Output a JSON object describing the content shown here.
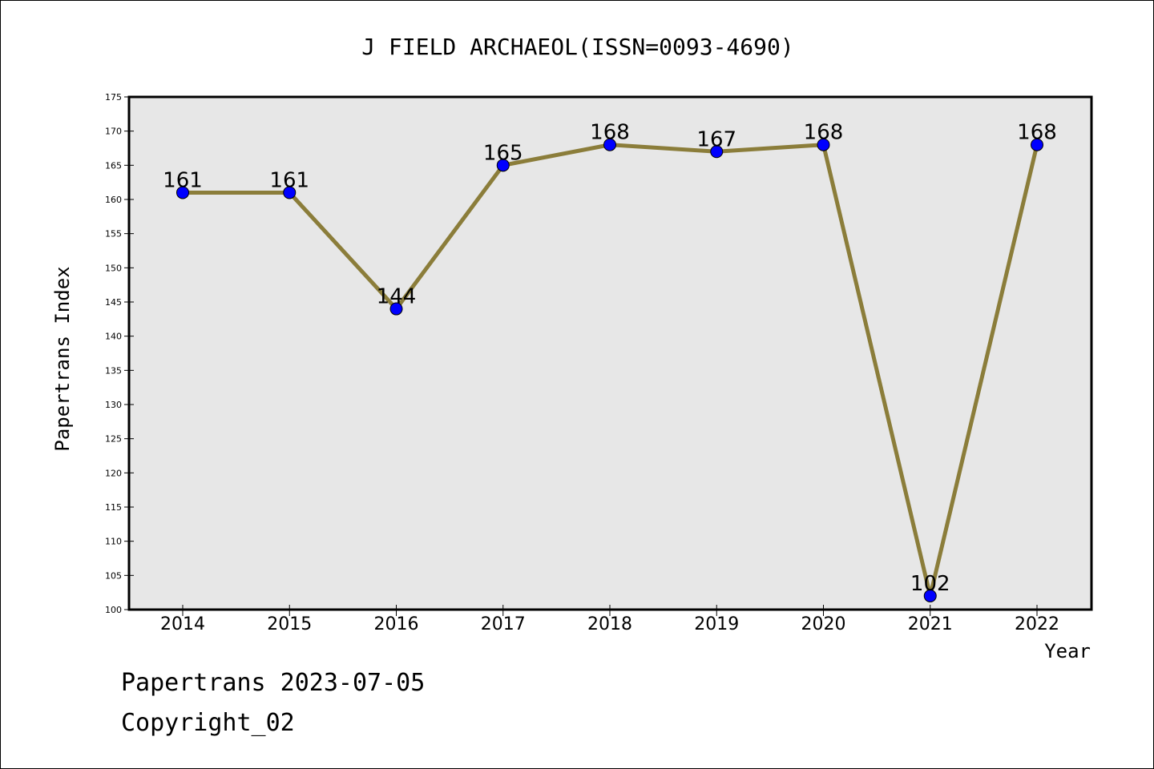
{
  "chart_data": {
    "type": "line",
    "title": "J FIELD ARCHAEOL(ISSN=0093-4690)",
    "xlabel": "Year",
    "ylabel": "Papertrans Index",
    "categories": [
      "2014",
      "2015",
      "2016",
      "2017",
      "2018",
      "2019",
      "2020",
      "2021",
      "2022"
    ],
    "series": [
      {
        "values": [
          161,
          161,
          144,
          165,
          168,
          167,
          168,
          102,
          168
        ]
      }
    ],
    "data_labels": [
      "161",
      "161",
      "144",
      "165",
      "168",
      "167",
      "168",
      "102",
      "168"
    ],
    "ylim": [
      100,
      175
    ],
    "yticks": [
      100,
      105,
      110,
      115,
      120,
      125,
      130,
      135,
      140,
      145,
      150,
      155,
      160,
      165,
      170,
      175
    ],
    "grid": false,
    "colors": {
      "line": "#8B7D3A",
      "marker": "#0000FF",
      "plot_background": "#E7E7E7"
    }
  },
  "footer": {
    "line1": "Papertrans 2023-07-05",
    "line2": "Copyright_02"
  }
}
